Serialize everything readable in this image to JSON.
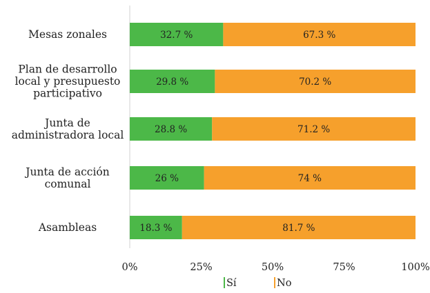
{
  "chart_data": {
    "type": "bar",
    "orientation": "horizontal",
    "stacked": true,
    "categories": [
      [
        "Mesas zonales"
      ],
      [
        "Plan de desarrollo",
        "local y presupuesto",
        "participativo"
      ],
      [
        "Junta de",
        "administradora local"
      ],
      [
        "Junta de acción",
        "comunal"
      ],
      [
        "Asambleas"
      ]
    ],
    "series": [
      {
        "name": "Sí",
        "color": "#4cb848",
        "values": [
          32.7,
          29.8,
          28.8,
          26,
          18.3
        ],
        "labels": [
          "32.7 %",
          "29.8 %",
          "28.8 %",
          "26 %",
          "18.3 %"
        ]
      },
      {
        "name": "No",
        "color": "#f6a02c",
        "values": [
          67.3,
          70.2,
          71.2,
          74,
          81.7
        ],
        "labels": [
          "67.3 %",
          "70.2 %",
          "71.2 %",
          "74 %",
          "81.7 %"
        ]
      }
    ],
    "x_ticks": [
      "0%",
      "25%",
      "50%",
      "75%",
      "100%"
    ],
    "xlim": [
      0,
      100
    ],
    "grid": false,
    "legend_position": "bottom"
  }
}
